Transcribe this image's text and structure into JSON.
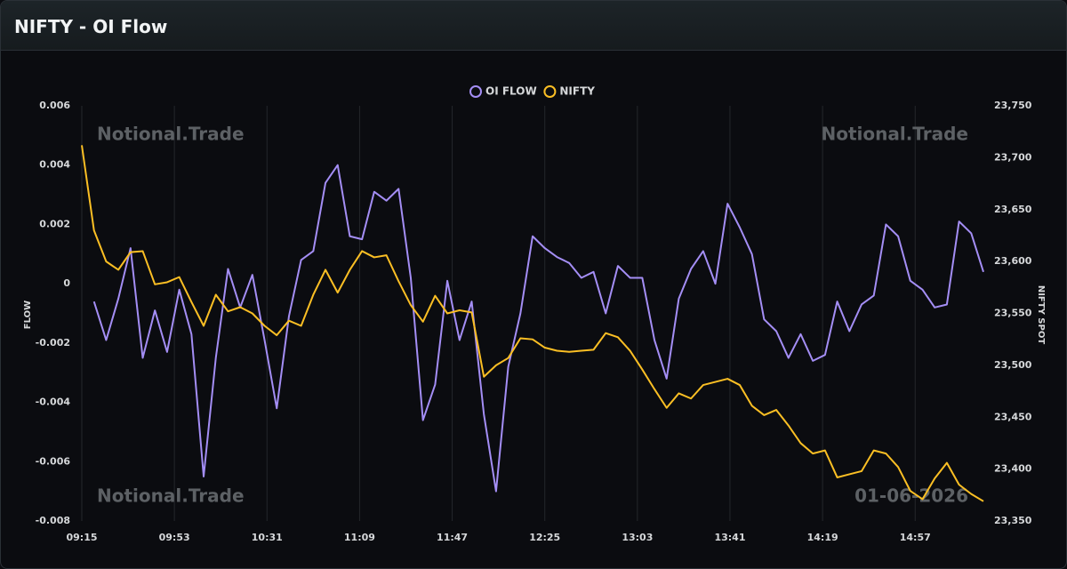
{
  "chart_data": {
    "type": "line",
    "title": "NIFTY - OI Flow",
    "x": [
      "09:15",
      "09:20",
      "09:25",
      "09:30",
      "09:35",
      "09:40",
      "09:45",
      "09:50",
      "09:55",
      "10:00",
      "10:05",
      "10:10",
      "10:15",
      "10:20",
      "10:25",
      "10:30",
      "10:35",
      "10:40",
      "10:45",
      "10:50",
      "10:55",
      "11:00",
      "11:05",
      "11:10",
      "11:15",
      "11:20",
      "11:25",
      "11:30",
      "11:35",
      "11:40",
      "11:45",
      "11:50",
      "11:55",
      "12:00",
      "12:05",
      "12:10",
      "12:15",
      "12:20",
      "12:25",
      "12:30",
      "12:35",
      "12:40",
      "12:45",
      "12:50",
      "12:55",
      "13:00",
      "13:05",
      "13:10",
      "13:15",
      "13:20",
      "13:25",
      "13:30",
      "13:35",
      "13:40",
      "13:45",
      "13:50",
      "13:55",
      "14:00",
      "14:05",
      "14:10",
      "14:15",
      "14:20",
      "14:25",
      "14:30",
      "14:35",
      "14:40",
      "14:45",
      "14:50",
      "14:55",
      "15:00",
      "15:05",
      "15:10",
      "15:15",
      "15:20",
      "15:25"
    ],
    "xlim": [
      "09:15",
      "15:25"
    ],
    "xticks": [
      "09:15",
      "09:53",
      "10:31",
      "11:09",
      "11:47",
      "12:25",
      "13:03",
      "13:41",
      "14:19",
      "14:57"
    ],
    "ylabel": "FLOW",
    "y2label": "NIFTY SPOT",
    "ylim": [
      -0.008,
      0.006
    ],
    "yticks": [
      -0.008,
      -0.006,
      -0.004,
      -0.002,
      0,
      0.002,
      0.004,
      0.006
    ],
    "y2lim": [
      23350,
      23750
    ],
    "y2ticks": [
      {
        "value": 23350,
        "label": "23,350"
      },
      {
        "value": 23400,
        "label": "23,400"
      },
      {
        "value": 23450,
        "label": "23,450"
      },
      {
        "value": 23500,
        "label": "23,500"
      },
      {
        "value": 23550,
        "label": "23,550"
      },
      {
        "value": 23600,
        "label": "23,600"
      },
      {
        "value": 23650,
        "label": "23,650"
      },
      {
        "value": 23700,
        "label": "23,700"
      },
      {
        "value": 23750,
        "label": "23,750"
      }
    ],
    "grid": true,
    "legend": "top",
    "series": [
      {
        "name": "OI FLOW",
        "color": "#a48ef5",
        "values": [
          null,
          -0.0006,
          -0.0019,
          -0.0005,
          0.0012,
          -0.0025,
          -0.0009,
          -0.0023,
          -0.0002,
          -0.0017,
          -0.0065,
          -0.0025,
          0.0005,
          -0.0008,
          0.0003,
          -0.0019,
          -0.0042,
          -0.0011,
          0.0008,
          0.0011,
          0.0034,
          0.004,
          0.0016,
          0.0015,
          0.0031,
          0.0028,
          0.0032,
          0.0002,
          -0.0046,
          -0.0034,
          0.0001,
          -0.0019,
          -0.0006,
          -0.0044,
          -0.007,
          -0.0028,
          -0.001,
          0.0016,
          0.0012,
          0.0009,
          0.0007,
          0.0002,
          0.0004,
          -0.001,
          0.0006,
          0.0002,
          0.0002,
          -0.0019,
          -0.0032,
          -0.0005,
          0.0005,
          0.0011,
          0.0,
          0.0027,
          0.0019,
          0.001,
          -0.0012,
          -0.0016,
          -0.0025,
          -0.0017,
          -0.0026,
          -0.0024,
          -0.0006,
          -0.0016,
          -0.0007,
          -0.0004,
          0.002,
          0.0016,
          0.0001,
          -0.0002,
          -0.0008,
          -0.0007,
          0.0021,
          0.0017,
          0.0004
        ]
      },
      {
        "name": "NIFTY",
        "color": "#fbbf24",
        "axis": "y2",
        "values": [
          23712,
          23630,
          23600,
          23592,
          23609,
          23610,
          23578,
          23580,
          23585,
          23561,
          23538,
          23568,
          23552,
          23556,
          23550,
          23538,
          23529,
          23543,
          23538,
          23568,
          23592,
          23570,
          23592,
          23610,
          23604,
          23606,
          23581,
          23558,
          23542,
          23567,
          23550,
          23553,
          23551,
          23489,
          23500,
          23507,
          23526,
          23525,
          23517,
          23514,
          23513,
          23514,
          23515,
          23531,
          23527,
          23514,
          23496,
          23477,
          23459,
          23473,
          23468,
          23481,
          23484,
          23487,
          23481,
          23461,
          23452,
          23457,
          23442,
          23425,
          23415,
          23418,
          23392,
          23395,
          23398,
          23418,
          23415,
          23402,
          23379,
          23371,
          23391,
          23406,
          23385,
          23376,
          23369
        ]
      }
    ],
    "watermarks": [
      "Notional.Trade",
      "Notional.Trade",
      "Notional.Trade",
      "01-06-2026"
    ]
  }
}
